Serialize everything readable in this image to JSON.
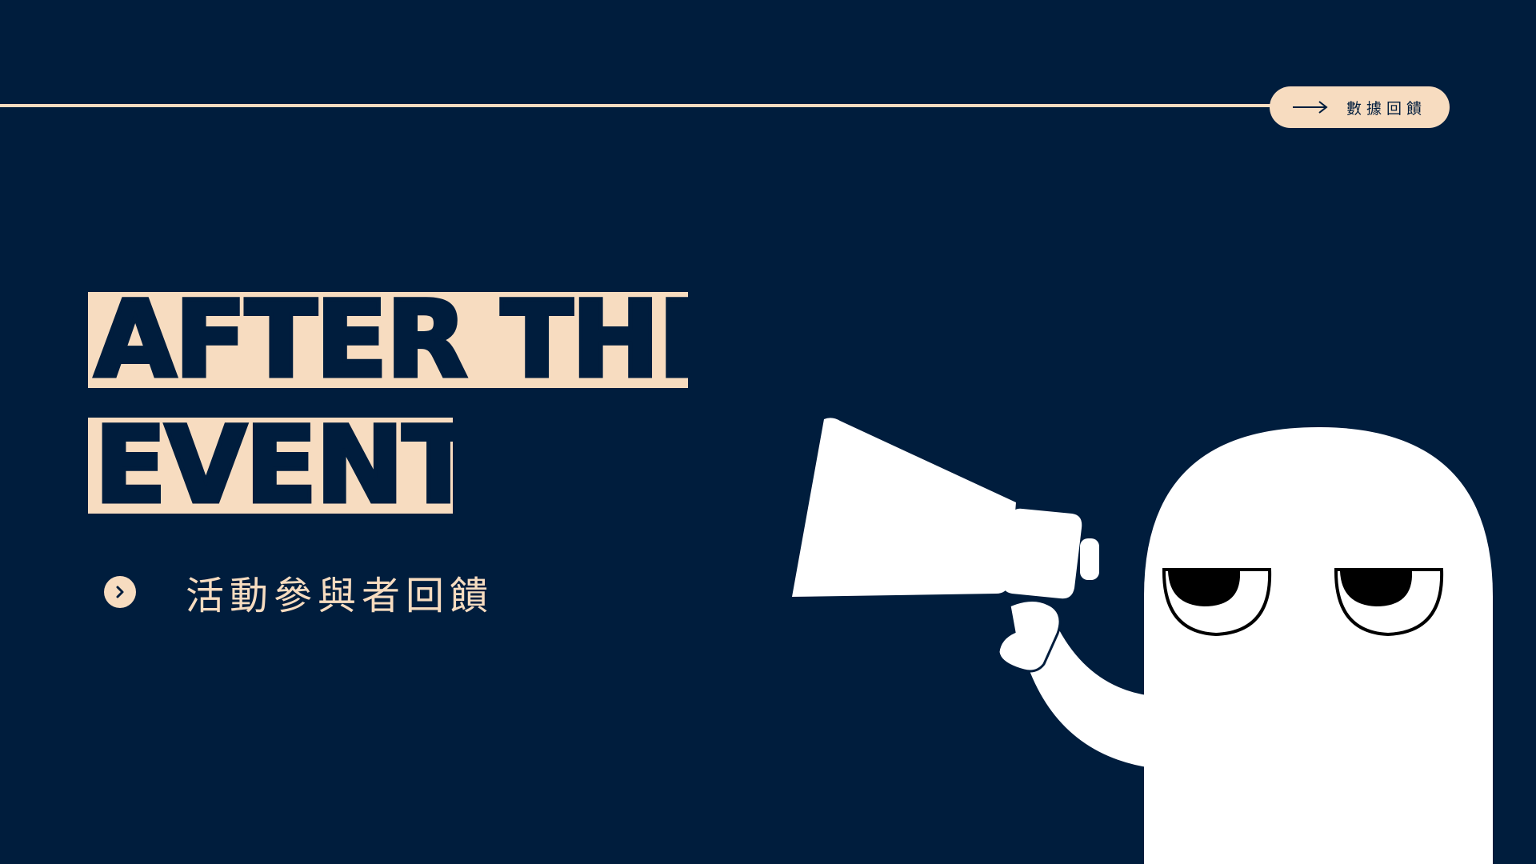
{
  "slide": {
    "tag_label": "數據回饋",
    "headline_line1": "AFTER THE",
    "headline_line2": "EVENT",
    "subtitle": "活動參與者回饋"
  },
  "colors": {
    "background": "#001d3d",
    "accent": "#f7dcc0",
    "illustration": "#ffffff"
  },
  "icons": {
    "tag_icon": "arrow-right-icon",
    "bullet_icon": "chevron-right-icon",
    "illustration": "ghost-with-megaphone"
  }
}
